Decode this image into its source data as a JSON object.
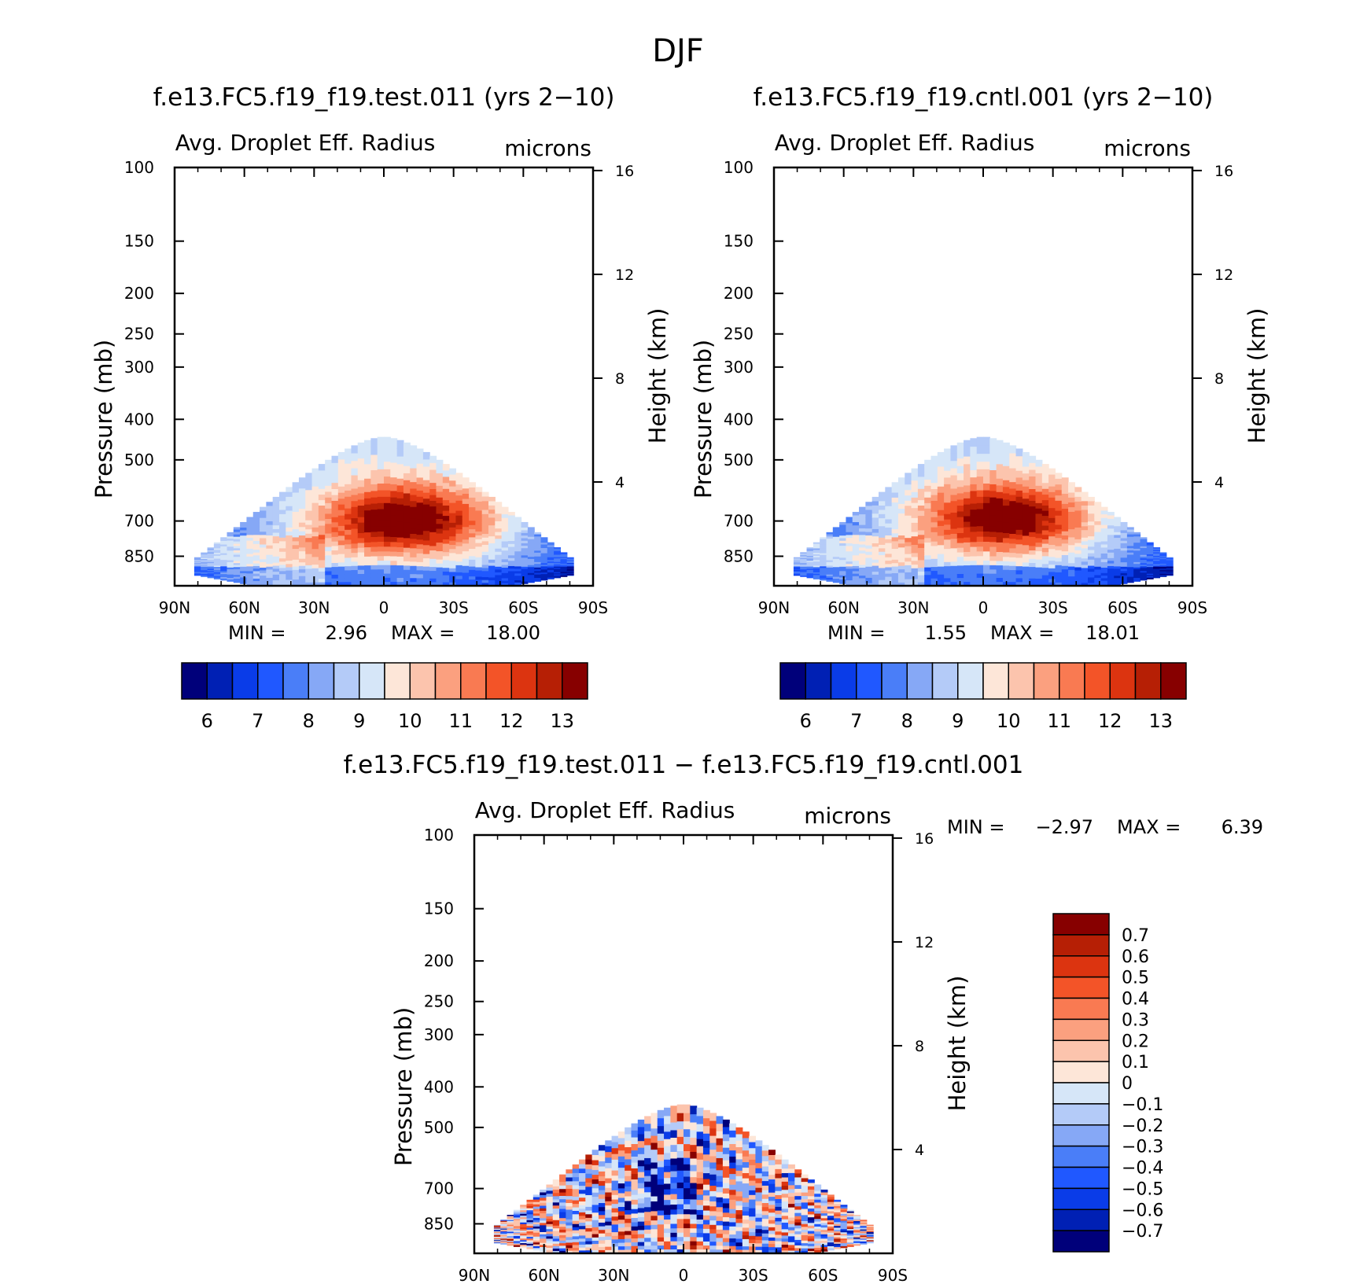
{
  "title": "DJF",
  "chart_data": [
    {
      "type": "heatmap",
      "id": "test",
      "title": "f.e13.FC5.f19_f19.test.011 (yrs 2-10)",
      "variable": "Avg. Droplet Eff. Radius",
      "units": "microns",
      "ylabel": "Pressure (mb)",
      "y2label": "Height (km)",
      "x_ticks": [
        "90N",
        "60N",
        "30N",
        "0",
        "30S",
        "60S",
        "90S"
      ],
      "y_ticks": [
        100,
        150,
        200,
        250,
        300,
        400,
        500,
        700,
        850
      ],
      "y2_ticks": [
        16,
        12,
        8,
        4
      ],
      "xlim": [
        -90,
        90
      ],
      "ylim": [
        100,
        1000
      ],
      "min_label": "MIN =",
      "min_value": "2.96",
      "max_label": "MAX =",
      "max_value": "18.00",
      "field": {
        "base": 8.8,
        "core": 5.2,
        "core_lat": 10,
        "core_p": 700,
        "jitter": 0.35,
        "seed": 11,
        "min": 2.96,
        "max": 18.0
      },
      "levels": [
        5.5,
        6,
        6.5,
        7,
        7.5,
        8,
        8.5,
        9,
        9.5,
        10,
        10.5,
        11,
        11.5,
        12,
        12.5,
        13,
        13.5
      ],
      "colorbar_labels": [
        "6",
        "7",
        "8",
        "9",
        "10",
        "11",
        "12",
        "13"
      ]
    },
    {
      "type": "heatmap",
      "id": "cntl",
      "title": "f.e13.FC5.f19_f19.cntl.001 (yrs 2-10)",
      "variable": "Avg. Droplet Eff. Radius",
      "units": "microns",
      "ylabel": "Pressure (mb)",
      "y2label": "Height (km)",
      "x_ticks": [
        "90N",
        "60N",
        "30N",
        "0",
        "30S",
        "60S",
        "90S"
      ],
      "y_ticks": [
        100,
        150,
        200,
        250,
        300,
        400,
        500,
        700,
        850
      ],
      "y2_ticks": [
        16,
        12,
        8,
        4
      ],
      "xlim": [
        -90,
        90
      ],
      "ylim": [
        100,
        1000
      ],
      "min_label": "MIN =",
      "min_value": "1.55",
      "max_label": "MAX =",
      "max_value": "18.01",
      "field": {
        "base": 8.7,
        "core": 5.2,
        "core_lat": 10,
        "core_p": 690,
        "jitter": 0.35,
        "seed": 29,
        "min": 1.55,
        "max": 18.01
      },
      "levels": [
        5.5,
        6,
        6.5,
        7,
        7.5,
        8,
        8.5,
        9,
        9.5,
        10,
        10.5,
        11,
        11.5,
        12,
        12.5,
        13,
        13.5
      ],
      "colorbar_labels": [
        "6",
        "7",
        "8",
        "9",
        "10",
        "11",
        "12",
        "13"
      ]
    },
    {
      "type": "heatmap",
      "id": "diff",
      "title": "f.e13.FC5.f19_f19.test.011 - f.e13.FC5.f19_f19.cntl.001",
      "variable": "Avg. Droplet Eff. Radius",
      "units": "microns",
      "ylabel": "Pressure (mb)",
      "y2label": "Height (km)",
      "x_ticks": [
        "90N",
        "60N",
        "30N",
        "0",
        "30S",
        "60S",
        "90S"
      ],
      "y_ticks": [
        100,
        150,
        200,
        250,
        300,
        400,
        500,
        700,
        850
      ],
      "y2_ticks": [
        16,
        12,
        8,
        4
      ],
      "xlim": [
        -90,
        90
      ],
      "ylim": [
        100,
        1000
      ],
      "min_label": "MIN =",
      "min_value": "-2.97",
      "max_label": "MAX =",
      "max_value": "6.39",
      "field": {
        "amp": 0.55,
        "seed": 7,
        "min": -2.97,
        "max": 6.39
      },
      "levels": [
        -0.75,
        -0.7,
        -0.6,
        -0.5,
        -0.4,
        -0.3,
        -0.2,
        -0.1,
        0,
        0.1,
        0.2,
        0.3,
        0.4,
        0.5,
        0.6,
        0.7,
        0.75
      ],
      "colorbar_labels": [
        "0.7",
        "0.6",
        "0.5",
        "0.4",
        "0.3",
        "0.2",
        "0.1",
        "0",
        "-0.1",
        "-0.2",
        "-0.3",
        "-0.4",
        "-0.5",
        "-0.6",
        "-0.7"
      ]
    }
  ],
  "palette": [
    "#00007a",
    "#0020b4",
    "#0a3ce8",
    "#2058ff",
    "#4a7ef8",
    "#86a8f6",
    "#b4cbf8",
    "#d6e6f8",
    "#fde6d8",
    "#fcc4ad",
    "#fba07f",
    "#f97a52",
    "#f35428",
    "#dc3410",
    "#b61f05",
    "#870000"
  ]
}
